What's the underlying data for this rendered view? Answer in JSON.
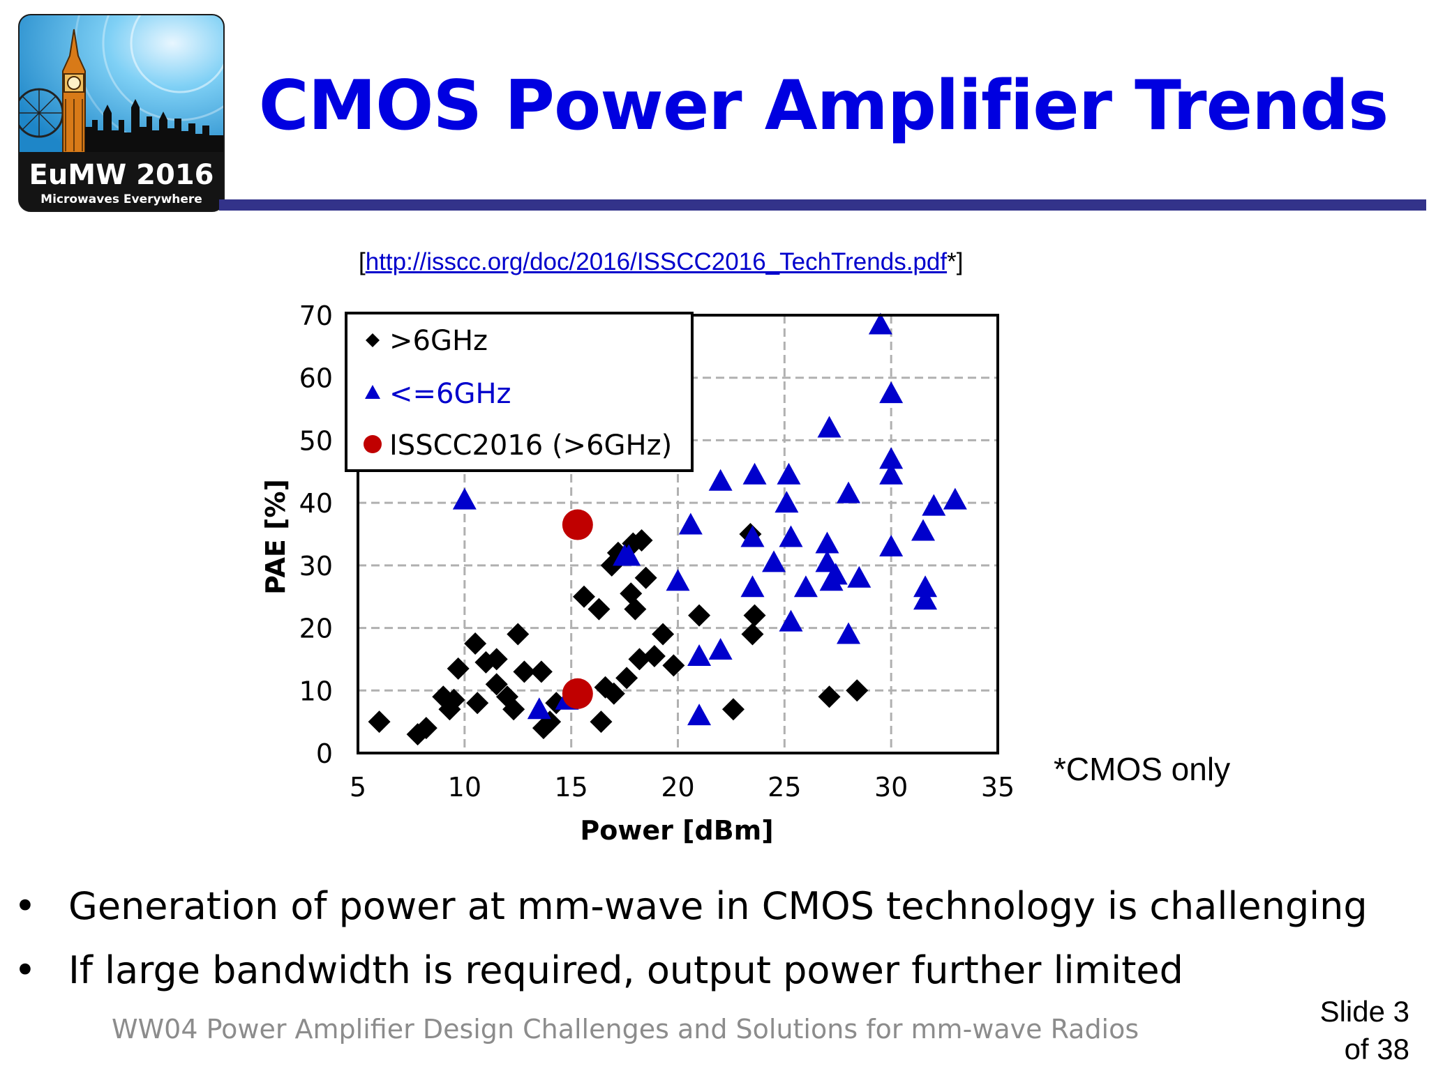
{
  "logo": {
    "title": "EuMW 2016",
    "subtitle": "Microwaves Everywhere"
  },
  "slide": {
    "title": "CMOS Power Amplifier Trends",
    "source_prefix": "[",
    "source_link": "http://isscc.org/doc/2016/ISSCC2016_TechTrends.pdf",
    "source_suffix": "*]",
    "footnote": "*CMOS only",
    "bullets": [
      "Generation of power at mm-wave in CMOS technology is challenging",
      "If large bandwidth is required, output power further limited"
    ],
    "bullet_symbol": "•",
    "footer": "WW04  Power Amplifier Design Challenges and Solutions for mm-wave Radios",
    "slide_number_line1": "Slide 3",
    "slide_number_line2": "of 38"
  },
  "colors": {
    "title_blue": "#0000e0",
    "rule": "#33338a",
    "series_gt6": "#000000",
    "series_le6": "#0000cc",
    "series_isscc": "#c00000",
    "grid": "#b0b0b0"
  },
  "chart_data": {
    "type": "scatter",
    "xlabel": "Power [dBm]",
    "ylabel": "PAE [%]",
    "xlim": [
      5,
      35
    ],
    "ylim": [
      0,
      70
    ],
    "xticks": [
      5,
      10,
      15,
      20,
      25,
      30,
      35
    ],
    "yticks": [
      0,
      10,
      20,
      30,
      40,
      50,
      60,
      70
    ],
    "grid": true,
    "legend_position": "top-left",
    "series": [
      {
        "name": ">6GHz",
        "marker": "diamond",
        "color": "#000000",
        "points": [
          [
            6.0,
            5.0
          ],
          [
            7.8,
            3.0
          ],
          [
            8.2,
            4.0
          ],
          [
            9.0,
            9.0
          ],
          [
            9.3,
            7.0
          ],
          [
            9.5,
            8.5
          ],
          [
            9.7,
            13.5
          ],
          [
            10.5,
            17.5
          ],
          [
            10.6,
            8.0
          ],
          [
            11.0,
            14.5
          ],
          [
            11.5,
            15.0
          ],
          [
            11.5,
            11.0
          ],
          [
            12.0,
            9.0
          ],
          [
            12.3,
            7.0
          ],
          [
            12.5,
            19.0
          ],
          [
            12.8,
            13.0
          ],
          [
            13.6,
            13.0
          ],
          [
            13.7,
            4.0
          ],
          [
            14.0,
            5.0
          ],
          [
            14.3,
            8.0
          ],
          [
            15.6,
            25.0
          ],
          [
            16.3,
            23.0
          ],
          [
            16.4,
            5.0
          ],
          [
            16.6,
            10.5
          ],
          [
            16.9,
            30.0
          ],
          [
            17.0,
            9.5
          ],
          [
            17.2,
            32.0
          ],
          [
            17.6,
            12.0
          ],
          [
            17.8,
            25.5
          ],
          [
            17.9,
            33.5
          ],
          [
            18.0,
            23.0
          ],
          [
            18.2,
            15.0
          ],
          [
            18.3,
            34.0
          ],
          [
            18.5,
            28.0
          ],
          [
            18.9,
            15.5
          ],
          [
            19.3,
            19.0
          ],
          [
            19.8,
            14.0
          ],
          [
            21.0,
            22.0
          ],
          [
            22.6,
            7.0
          ],
          [
            23.4,
            35.0
          ],
          [
            23.5,
            19.0
          ],
          [
            23.6,
            22.0
          ],
          [
            27.1,
            9.0
          ],
          [
            28.4,
            10.0
          ]
        ]
      },
      {
        "name": "<=6GHz",
        "marker": "triangle",
        "color": "#0000cc",
        "points": [
          [
            10.0,
            40.5
          ],
          [
            13.5,
            7.0
          ],
          [
            14.8,
            8.5
          ],
          [
            17.5,
            31.5
          ],
          [
            17.7,
            31.5
          ],
          [
            20.0,
            27.5
          ],
          [
            20.6,
            36.5
          ],
          [
            21.0,
            15.5
          ],
          [
            21.0,
            6.0
          ],
          [
            22.0,
            16.5
          ],
          [
            22.0,
            43.5
          ],
          [
            23.5,
            26.5
          ],
          [
            23.5,
            34.5
          ],
          [
            23.6,
            44.5
          ],
          [
            24.5,
            30.5
          ],
          [
            25.1,
            40.0
          ],
          [
            25.2,
            44.5
          ],
          [
            25.3,
            21.0
          ],
          [
            25.3,
            34.5
          ],
          [
            26.0,
            26.5
          ],
          [
            27.0,
            30.5
          ],
          [
            27.0,
            33.5
          ],
          [
            27.1,
            52.0
          ],
          [
            27.2,
            27.5
          ],
          [
            27.4,
            28.5
          ],
          [
            28.0,
            19.0
          ],
          [
            28.0,
            41.5
          ],
          [
            28.5,
            28.0
          ],
          [
            29.5,
            68.5
          ],
          [
            30.0,
            57.5
          ],
          [
            30.0,
            47.0
          ],
          [
            30.0,
            44.5
          ],
          [
            30.0,
            33.0
          ],
          [
            31.5,
            35.5
          ],
          [
            31.6,
            24.5
          ],
          [
            31.6,
            26.5
          ],
          [
            32.0,
            39.5
          ],
          [
            33.0,
            40.5
          ]
        ]
      },
      {
        "name": "ISSCC2016 (>6GHz)",
        "marker": "circle",
        "color": "#c00000",
        "points": [
          [
            15.3,
            36.5
          ],
          [
            15.3,
            9.5
          ]
        ]
      }
    ]
  }
}
